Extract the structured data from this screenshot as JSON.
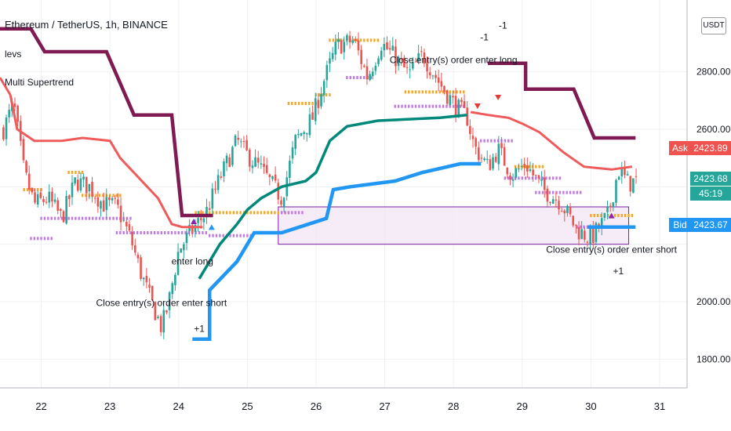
{
  "header": {
    "symbol_title": "Ethereum / TetherUS, 1h, BINANCE",
    "indicator_1": "levs",
    "indicator_2": "Multi Supertrend",
    "currency_button": "USDT"
  },
  "quote": {
    "ask_label": "Ask",
    "ask_price": "2423.89",
    "last_price": "2423.68",
    "countdown": "45:19",
    "bid_label": "Bid",
    "bid_price": "2423.67"
  },
  "colors": {
    "up": "#26a69a",
    "down": "#ef5350",
    "st_slow": "#801a52",
    "st_mid": "#f05a5a",
    "st_fast_up": "#00897b",
    "st_fast_down": "#2196f3",
    "pivot_orange": "#f5a623",
    "pivot_purple": "#c07be0",
    "box_fill": "#f3e5f5",
    "box_border": "#7b1fa2",
    "ask_bg": "#ef5350",
    "last_bg": "#26a69a",
    "bid_bg": "#2196f3"
  },
  "chart_data": {
    "type": "candlestick",
    "title": "Ethereum / TetherUS, 1h, BINANCE",
    "x_ticks": [
      "22",
      "23",
      "24",
      "25",
      "26",
      "27",
      "28",
      "29",
      "30",
      "31"
    ],
    "y_ticks": [
      1800,
      2000,
      2200,
      2400,
      2600,
      2800
    ],
    "y_tick_labels": [
      "1800.00",
      "2000.00",
      "",
      "",
      "2600.00",
      "2800.00"
    ],
    "ylim": [
      1700,
      3050
    ],
    "xlim": [
      21.4,
      31.4
    ],
    "grid": true,
    "price_path": [
      [
        21.45,
        2600
      ],
      [
        21.6,
        2690
      ],
      [
        21.75,
        2450
      ],
      [
        21.9,
        2340
      ],
      [
        22.1,
        2360
      ],
      [
        22.3,
        2290
      ],
      [
        22.5,
        2420
      ],
      [
        22.7,
        2400
      ],
      [
        22.9,
        2340
      ],
      [
        23.1,
        2330
      ],
      [
        23.3,
        2220
      ],
      [
        23.45,
        2100
      ],
      [
        23.6,
        2000
      ],
      [
        23.75,
        1910
      ],
      [
        23.85,
        1990
      ],
      [
        24.0,
        2180
      ],
      [
        24.2,
        2250
      ],
      [
        24.4,
        2310
      ],
      [
        24.6,
        2430
      ],
      [
        24.85,
        2560
      ],
      [
        25.0,
        2510
      ],
      [
        25.2,
        2460
      ],
      [
        25.5,
        2360
      ],
      [
        25.7,
        2560
      ],
      [
        25.95,
        2640
      ],
      [
        26.1,
        2760
      ],
      [
        26.3,
        2890
      ],
      [
        26.55,
        2910
      ],
      [
        26.75,
        2780
      ],
      [
        26.95,
        2900
      ],
      [
        27.15,
        2850
      ],
      [
        27.35,
        2790
      ],
      [
        27.55,
        2860
      ],
      [
        27.8,
        2760
      ],
      [
        28.0,
        2690
      ],
      [
        28.2,
        2640
      ],
      [
        28.3,
        2540
      ],
      [
        28.5,
        2470
      ],
      [
        28.65,
        2530
      ],
      [
        28.85,
        2440
      ],
      [
        29.05,
        2480
      ],
      [
        29.3,
        2390
      ],
      [
        29.55,
        2350
      ],
      [
        29.8,
        2250
      ],
      [
        30.0,
        2220
      ],
      [
        30.25,
        2300
      ],
      [
        30.4,
        2460
      ],
      [
        30.55,
        2410
      ],
      [
        30.68,
        2423.68
      ]
    ],
    "series": [
      {
        "name": "Supertrend slow",
        "points": [
          [
            21.4,
            2950
          ],
          [
            21.85,
            2950
          ],
          [
            22.05,
            2870
          ],
          [
            22.95,
            2870
          ],
          [
            23.35,
            2650
          ],
          [
            23.9,
            2650
          ],
          [
            24.05,
            2300
          ],
          [
            24.5,
            2300
          ]
        ],
        "points_b": [
          [
            28.5,
            2830
          ],
          [
            29.05,
            2830
          ],
          [
            29.05,
            2740
          ],
          [
            29.75,
            2740
          ],
          [
            30.05,
            2570
          ],
          [
            30.65,
            2570
          ]
        ]
      },
      {
        "name": "Supertrend mid",
        "points": [
          [
            21.4,
            2780
          ],
          [
            21.55,
            2720
          ],
          [
            21.65,
            2600
          ],
          [
            21.9,
            2560
          ],
          [
            22.3,
            2560
          ],
          [
            22.6,
            2570
          ],
          [
            23.0,
            2560
          ],
          [
            23.15,
            2500
          ],
          [
            23.7,
            2360
          ],
          [
            23.9,
            2270
          ],
          [
            24.05,
            2260
          ],
          [
            24.35,
            2260
          ]
        ],
        "points_b": [
          [
            28.25,
            2660
          ],
          [
            28.5,
            2650
          ],
          [
            28.8,
            2640
          ],
          [
            29.0,
            2620
          ],
          [
            29.25,
            2590
          ],
          [
            29.6,
            2520
          ],
          [
            29.9,
            2470
          ],
          [
            30.3,
            2460
          ],
          [
            30.6,
            2470
          ]
        ]
      },
      {
        "name": "Supertrend fast up",
        "points": [
          [
            24.3,
            2080
          ],
          [
            24.6,
            2200
          ],
          [
            24.85,
            2270
          ],
          [
            25.0,
            2320
          ],
          [
            25.2,
            2360
          ],
          [
            25.5,
            2400
          ],
          [
            25.85,
            2420
          ],
          [
            26.0,
            2450
          ],
          [
            26.2,
            2560
          ],
          [
            26.45,
            2610
          ],
          [
            26.9,
            2630
          ],
          [
            27.8,
            2640
          ],
          [
            28.2,
            2650
          ]
        ]
      },
      {
        "name": "Supertrend fast down",
        "points": [
          [
            24.2,
            1870
          ],
          [
            24.45,
            1870
          ],
          [
            24.45,
            2040
          ],
          [
            24.85,
            2140
          ],
          [
            25.1,
            2240
          ],
          [
            25.5,
            2240
          ],
          [
            26.15,
            2290
          ],
          [
            26.25,
            2390
          ],
          [
            26.5,
            2400
          ],
          [
            27.15,
            2420
          ],
          [
            27.55,
            2450
          ],
          [
            28.1,
            2480
          ],
          [
            28.4,
            2480
          ]
        ],
        "points_b": [
          [
            29.95,
            2260
          ],
          [
            30.65,
            2260
          ]
        ]
      }
    ],
    "annotations": [
      {
        "text": "Close entry(s) order enter long",
        "x": 28.0,
        "y": 2830
      },
      {
        "text": "-1",
        "x": 28.45,
        "y": 2910
      },
      {
        "text": "-1",
        "x": 28.72,
        "y": 2950
      },
      {
        "text": "enter long",
        "x": 24.2,
        "y": 2130
      },
      {
        "text": "Close entry(s) order enter short",
        "x": 23.75,
        "y": 1985
      },
      {
        "text": "+1",
        "x": 24.3,
        "y": 1895
      },
      {
        "text": "Close entry(s) order enter short",
        "x": 30.3,
        "y": 2170
      },
      {
        "text": "+1",
        "x": 30.4,
        "y": 2095
      }
    ]
  }
}
